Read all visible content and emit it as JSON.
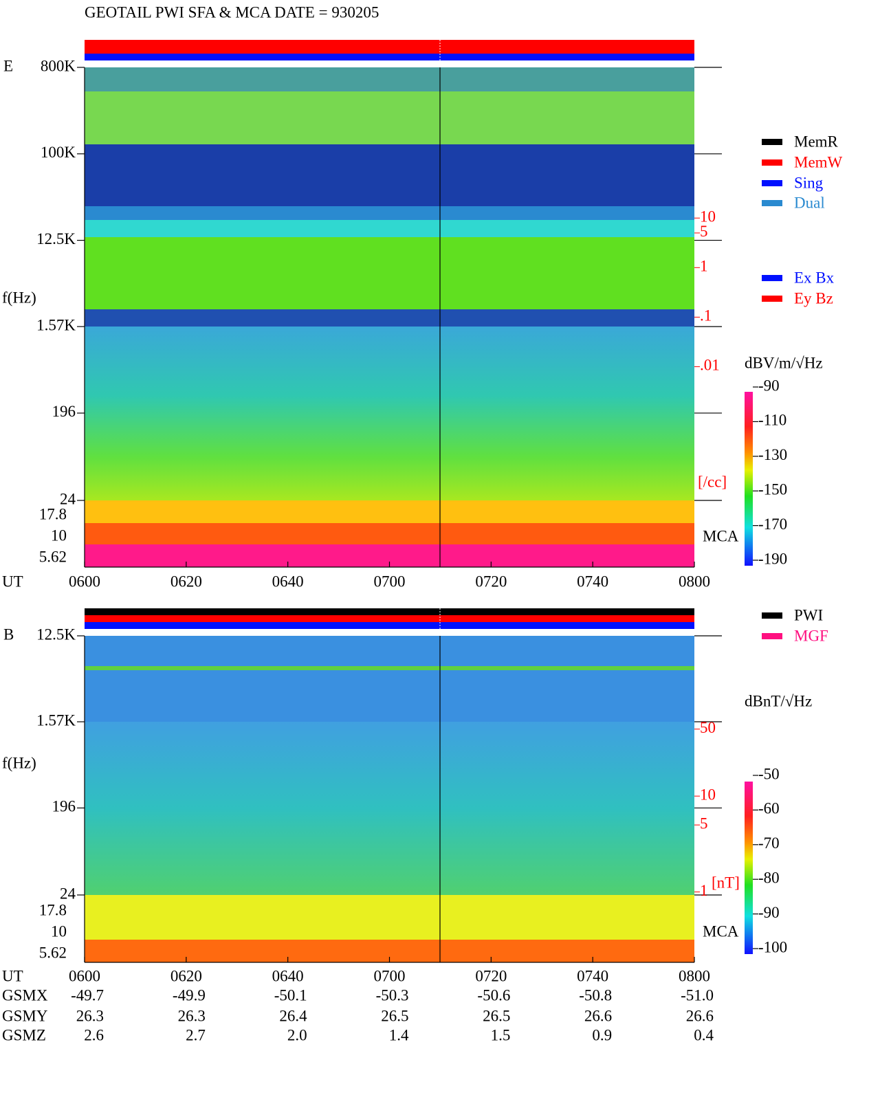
{
  "title": "GEOTAIL   PWI SFA & MCA   DATE = 930205",
  "chart_data": [
    {
      "type": "spectrogram",
      "panel": "E",
      "ylabel": "f(Hz)",
      "xlabel": "UT",
      "categories": [
        "0600",
        "0620",
        "0640",
        "0700",
        "0720",
        "0740",
        "0800"
      ],
      "ylog": true,
      "ylim": [
        24,
        800000
      ],
      "yticks": [
        {
          "value": 800000,
          "label": "800K"
        },
        {
          "value": 100000,
          "label": "100K"
        },
        {
          "value": 12500,
          "label": "12.5K"
        },
        {
          "value": 1570,
          "label": "1.57K"
        },
        196,
        24
      ],
      "mca_label": "MCA",
      "mca_ticks": [
        17.8,
        10,
        5.62
      ],
      "y2label": "[/cc]",
      "y2log": true,
      "y2lim": [
        2e-05,
        11000
      ],
      "y2ticks": [
        10,
        5,
        1,
        {
          "value": 0.1,
          "label": ".1"
        },
        {
          "value": 0.01,
          "label": ".01"
        }
      ],
      "colorbar_label": "dBV/m/√Hz",
      "colorbar_lim": [
        -190,
        -90
      ],
      "colorbar_ticks": [
        -90,
        -110,
        -130,
        -150,
        -170,
        -190
      ],
      "legend": [
        {
          "name": "MemR",
          "color": "#000000"
        },
        {
          "name": "MemW",
          "color": "#ff0000"
        },
        {
          "name": "Sing",
          "color": "#0010ff"
        },
        {
          "name": "Dual",
          "color": "#2a8ad0"
        },
        {
          "name": "Ex Bx",
          "color": "#0010ff"
        },
        {
          "name": "Ey Bz",
          "color": "#ff0000"
        }
      ]
    },
    {
      "type": "spectrogram",
      "panel": "B",
      "ylabel": "f(Hz)",
      "xlabel": "UT",
      "categories": [
        "0600",
        "0620",
        "0640",
        "0700",
        "0720",
        "0740",
        "0800"
      ],
      "ylog": true,
      "ylim": [
        24,
        12500
      ],
      "yticks": [
        {
          "value": 12500,
          "label": "12.5K"
        },
        {
          "value": 1570,
          "label": "1.57K"
        },
        196,
        24
      ],
      "mca_label": "MCA",
      "mca_ticks": [
        17.8,
        10,
        5.62
      ],
      "y2label": "[nT]",
      "y2log": true,
      "y2lim": [
        0.93,
        470
      ],
      "y2ticks": [
        50,
        10,
        5,
        1
      ],
      "colorbar_label": "dBnT/√Hz",
      "colorbar_lim": [
        -100,
        -50
      ],
      "colorbar_ticks": [
        -50,
        -60,
        -70,
        -80,
        -90,
        -100
      ],
      "legend": [
        {
          "name": "PWI",
          "color": "#000000"
        },
        {
          "name": "MGF",
          "color": "#ff1080"
        }
      ]
    }
  ],
  "ephemeris": {
    "rows": [
      [
        "GSMX",
        "-49.7",
        "-49.9",
        "-50.1",
        "-50.3",
        "-50.6",
        "-50.8",
        "-51.0"
      ],
      [
        "GSMY",
        "26.3",
        "26.3",
        "26.4",
        "26.5",
        "26.5",
        "26.6",
        "26.6"
      ],
      [
        "GSMZ",
        "2.6",
        "2.7",
        "2.0",
        "1.4",
        "1.5",
        "0.9",
        "0.4"
      ]
    ]
  }
}
